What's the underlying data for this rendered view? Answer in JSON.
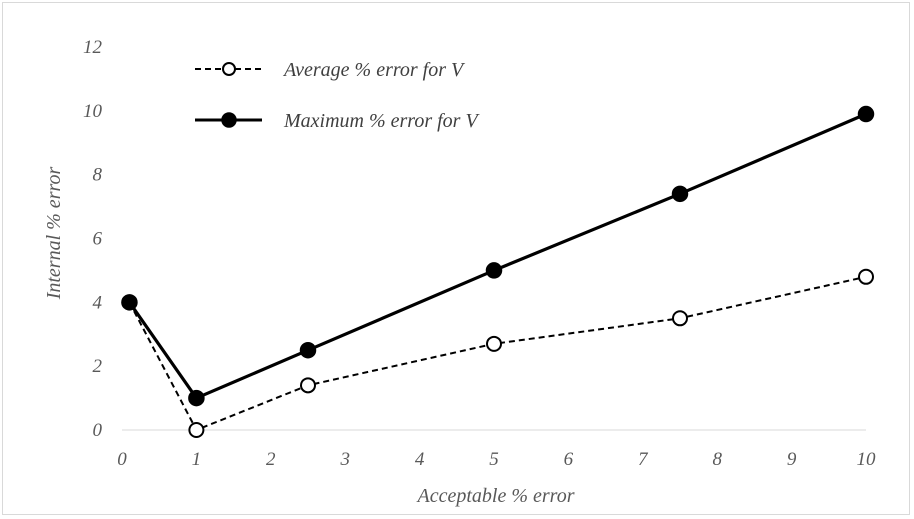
{
  "chart_data": {
    "type": "line",
    "title": "",
    "xlabel": "Acceptable % error",
    "ylabel": "Internal % error",
    "xlim": [
      0,
      10
    ],
    "ylim": [
      0,
      12
    ],
    "x_ticks": [
      "0",
      "1",
      "2",
      "3",
      "4",
      "5",
      "6",
      "7",
      "8",
      "9",
      "10"
    ],
    "y_ticks": [
      "0",
      "2",
      "4",
      "6",
      "8",
      "10",
      "12"
    ],
    "grid": false,
    "legend_position": "top-left",
    "series": [
      {
        "name": "Average % error for V",
        "style": "dashed",
        "marker": "open-circle",
        "color": "#000000",
        "x": [
          0.1,
          1,
          2.5,
          5,
          7.5,
          10
        ],
        "y": [
          4.0,
          0.0,
          1.4,
          2.7,
          3.5,
          4.8
        ]
      },
      {
        "name": "Maximum % error for V",
        "style": "solid",
        "marker": "filled-circle",
        "color": "#000000",
        "x": [
          0.1,
          1,
          2.5,
          5,
          7.5,
          10
        ],
        "y": [
          4.0,
          1.0,
          2.5,
          5.0,
          7.4,
          9.9
        ]
      }
    ]
  }
}
